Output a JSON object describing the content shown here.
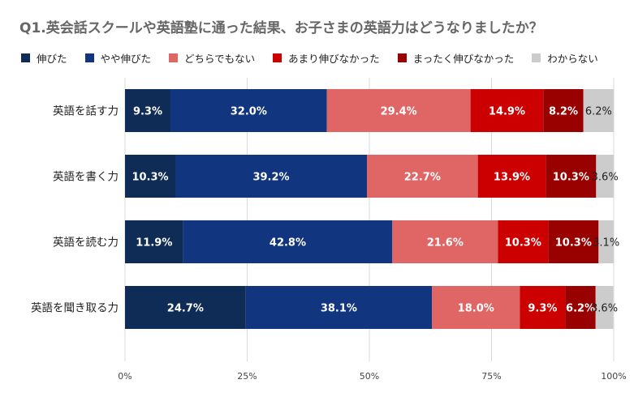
{
  "chart_data": {
    "type": "bar",
    "orientation": "horizontal",
    "stacked": true,
    "title": "Q1.英会話スクールや英語塾に通った結果、お子さまの英語力はどうなりましたか？",
    "categories": [
      "英語を話す力",
      "英語を書く力",
      "英語を読む力",
      "英語を聞き取る力"
    ],
    "series": [
      {
        "name": "伸びた",
        "color": "#0e2c55",
        "values": [
          9.3,
          10.3,
          11.9,
          24.7
        ]
      },
      {
        "name": "やや伸びた",
        "color": "#12357f",
        "values": [
          32.0,
          39.2,
          42.8,
          38.1
        ]
      },
      {
        "name": "どちらでもない",
        "color": "#e06666",
        "values": [
          29.4,
          22.7,
          21.6,
          18.0
        ]
      },
      {
        "name": "あまり伸びなかった",
        "color": "#cc0000",
        "values": [
          14.9,
          13.9,
          10.3,
          9.3
        ]
      },
      {
        "name": "まったく伸びなかった",
        "color": "#990000",
        "values": [
          8.2,
          10.3,
          10.3,
          6.2
        ]
      },
      {
        "name": "わからない",
        "color": "#cccccc",
        "values": [
          6.2,
          3.6,
          3.1,
          3.6
        ]
      }
    ],
    "value_suffix": "%",
    "xlim": [
      0,
      100
    ],
    "xticks": [
      {
        "value": 0,
        "label": "0%"
      },
      {
        "value": 25,
        "label": "25%"
      },
      {
        "value": 50,
        "label": "50%"
      },
      {
        "value": 75,
        "label": "75%"
      },
      {
        "value": 100,
        "label": "100%"
      }
    ],
    "grid": true,
    "legend_position": "top-left"
  }
}
